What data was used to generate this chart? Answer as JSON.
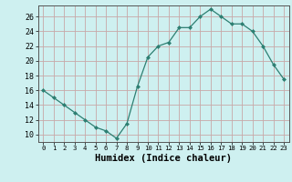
{
  "x": [
    0,
    1,
    2,
    3,
    4,
    5,
    6,
    7,
    8,
    9,
    10,
    11,
    12,
    13,
    14,
    15,
    16,
    17,
    18,
    19,
    20,
    21,
    22,
    23
  ],
  "y": [
    16,
    15,
    14,
    13,
    12,
    11,
    10.5,
    9.5,
    11.5,
    16.5,
    20.5,
    22,
    22.5,
    24.5,
    24.5,
    26,
    27,
    26,
    25,
    25,
    24,
    22,
    19.5,
    17.5
  ],
  "line_color": "#2d7f72",
  "marker": "D",
  "marker_size": 2.0,
  "bg_color": "#cef0f0",
  "grid_color": "#c8a8a8",
  "xlabel": "Humidex (Indice chaleur)",
  "xlim": [
    -0.5,
    23.5
  ],
  "ylim": [
    9,
    27.5
  ],
  "yticks": [
    10,
    12,
    14,
    16,
    18,
    20,
    22,
    24,
    26
  ],
  "xticks": [
    0,
    1,
    2,
    3,
    4,
    5,
    6,
    7,
    8,
    9,
    10,
    11,
    12,
    13,
    14,
    15,
    16,
    17,
    18,
    19,
    20,
    21,
    22,
    23
  ],
  "xlabel_fontsize": 7.5,
  "tick_fontsize": 6.0
}
